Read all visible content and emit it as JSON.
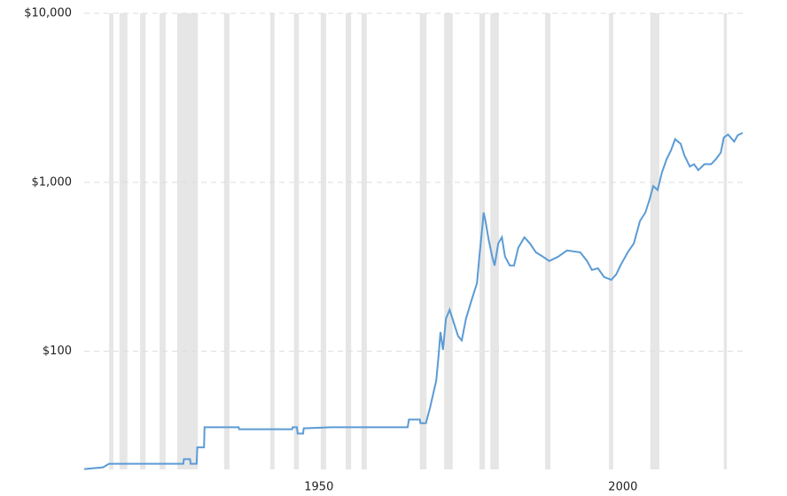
{
  "chart_data": {
    "type": "line",
    "ylog": true,
    "grid": true,
    "color": "#5b9bd5",
    "band_color": "#e6e6e6",
    "xlim": [
      1911.4,
      2019.7
    ],
    "xticks": [
      1950,
      2000
    ],
    "ylim": [
      20,
      10000
    ],
    "yticks": [
      {
        "value": 10000,
        "label": "$10,000"
      },
      {
        "value": 1000,
        "label": "$1,000"
      },
      {
        "value": 100,
        "label": "$100"
      }
    ],
    "recessions": [
      [
        1915.5,
        1916.2
      ],
      [
        1917.2,
        1918.5
      ],
      [
        1920.6,
        1921.5
      ],
      [
        1923.8,
        1924.8
      ],
      [
        1926.7,
        1930.1
      ],
      [
        1934.4,
        1935.3
      ],
      [
        1942.0,
        1942.7
      ],
      [
        1945.9,
        1946.7
      ],
      [
        1950.3,
        1951.2
      ],
      [
        1954.4,
        1955.3
      ],
      [
        1957.0,
        1957.9
      ],
      [
        1966.6,
        1967.7
      ],
      [
        1970.6,
        1972.0
      ],
      [
        1976.4,
        1977.3
      ],
      [
        1978.2,
        1979.6
      ],
      [
        1987.2,
        1988.1
      ],
      [
        1997.7,
        1998.4
      ],
      [
        2004.5,
        2006.0
      ],
      [
        2016.6,
        2017.1
      ]
    ],
    "x": [
      1911.4,
      1914.5,
      1915.5,
      1927.7,
      1927.8,
      1928.8,
      1928.9,
      1929.9,
      1930.0,
      1931.1,
      1931.2,
      1936.8,
      1936.9,
      1945.6,
      1945.7,
      1946.4,
      1946.5,
      1947.4,
      1947.5,
      1952.0,
      1964.6,
      1964.8,
      1966.6,
      1966.7,
      1967.6,
      1968.3,
      1969.3,
      1969.7,
      1970.0,
      1970.4,
      1970.9,
      1971.5,
      1972.2,
      1972.9,
      1973.5,
      1974.2,
      1975.1,
      1976.0,
      1976.4,
      1976.9,
      1977.1,
      1977.4,
      1977.9,
      1978.5,
      1978.9,
      1979.5,
      1980.1,
      1980.6,
      1981.4,
      1982.1,
      1982.8,
      1983.8,
      1984.7,
      1985.7,
      1986.8,
      1987.9,
      1989.4,
      1990.8,
      1993.0,
      1994.1,
      1994.9,
      1995.9,
      1996.9,
      1998.1,
      1998.9,
      1999.6,
      2000.8,
      2001.8,
      2002.8,
      2003.7,
      2004.4,
      2005.0,
      2005.7,
      2006.4,
      2007.2,
      2007.9,
      2008.6,
      2009.5,
      2010.1,
      2011.0,
      2011.7,
      2012.4,
      2013.4,
      2014.5,
      2015.3,
      2016.1,
      2016.6,
      2017.3,
      2018.3,
      2018.9,
      2019.7
    ],
    "values": [
      20.1,
      20.6,
      21.6,
      21.6,
      23,
      23,
      21.6,
      21.6,
      27,
      27,
      35.5,
      35.5,
      34.6,
      34.6,
      35.5,
      35.5,
      32.6,
      32.6,
      35,
      35.5,
      35.5,
      39.5,
      39.5,
      37.6,
      37.6,
      46.8,
      67,
      96,
      130,
      102,
      156,
      176,
      147,
      123,
      116,
      156,
      200,
      253,
      364,
      553,
      662,
      590,
      463,
      364,
      322,
      435,
      473,
      364,
      322,
      322,
      410,
      473,
      435,
      385,
      364,
      342,
      364,
      395,
      385,
      342,
      303,
      310,
      275,
      265,
      285,
      322,
      385,
      435,
      590,
      662,
      793,
      950,
      900,
      1140,
      1370,
      1540,
      1800,
      1690,
      1450,
      1240,
      1280,
      1180,
      1280,
      1280,
      1370,
      1500,
      1840,
      1920,
      1740,
      1900,
      1960
    ]
  }
}
